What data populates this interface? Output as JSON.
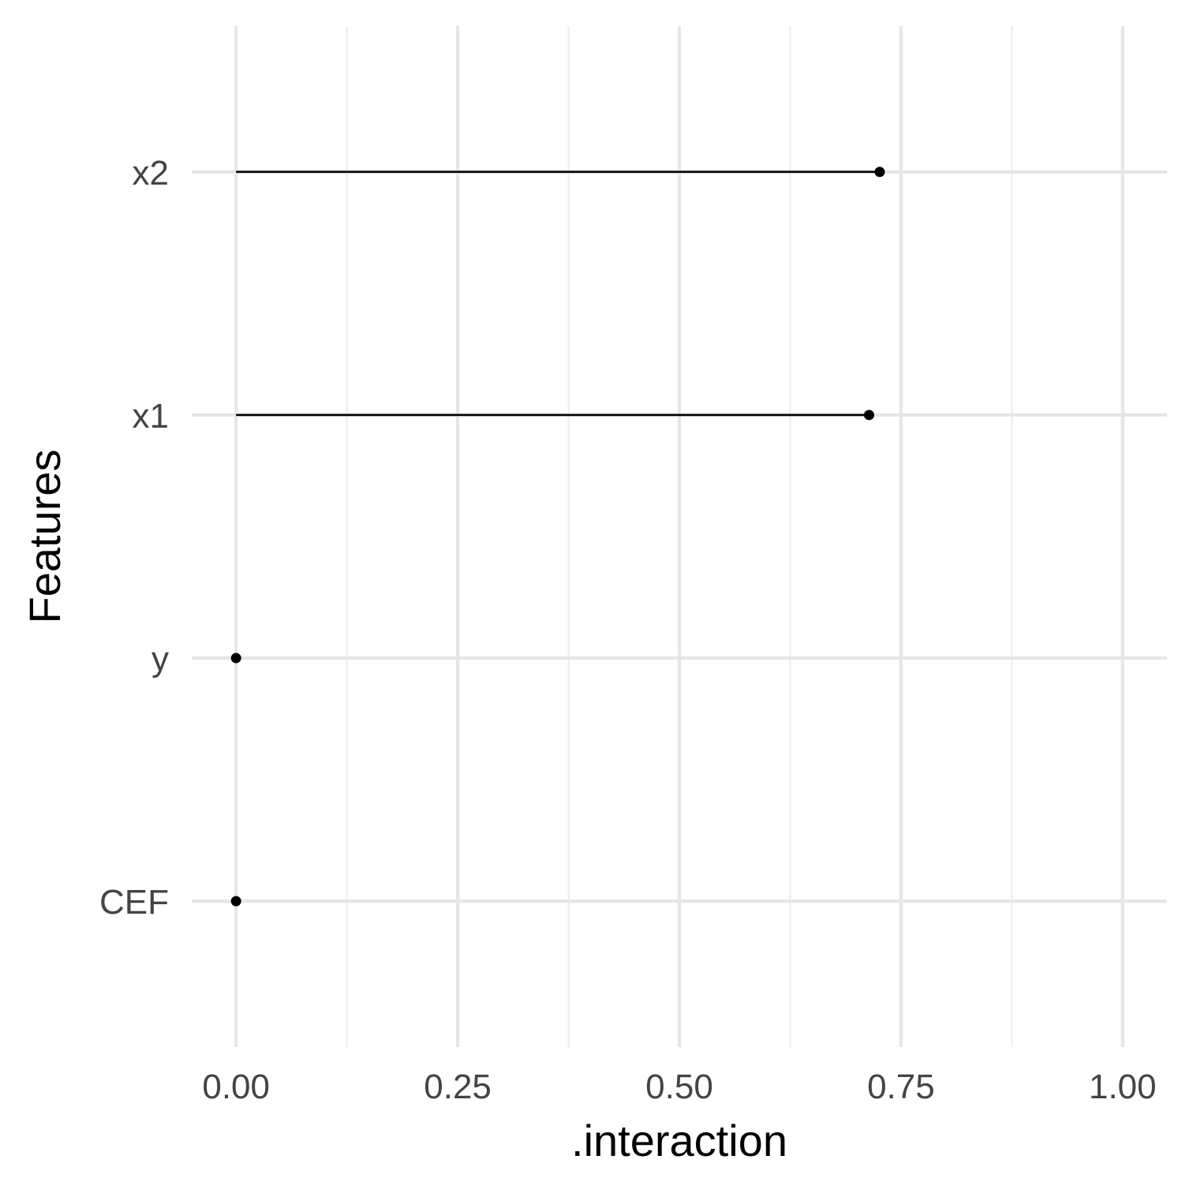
{
  "chart_data": {
    "type": "lollipop",
    "orientation": "horizontal",
    "xlabel": ".interaction",
    "ylabel": "Features",
    "xlim": [
      -0.05,
      1.05
    ],
    "x_ticks": [
      0,
      0.25,
      0.5,
      0.75,
      1.0
    ],
    "x_tick_labels": [
      "0.00",
      "0.25",
      "0.50",
      "0.75",
      "1.00"
    ],
    "x_minor_ticks": [
      0.125,
      0.375,
      0.625,
      0.875
    ],
    "categories": [
      "CEF",
      "y",
      "x1",
      "x2"
    ],
    "values": [
      0.0,
      0.0,
      0.714,
      0.726
    ],
    "grid": true,
    "legend": "none"
  }
}
